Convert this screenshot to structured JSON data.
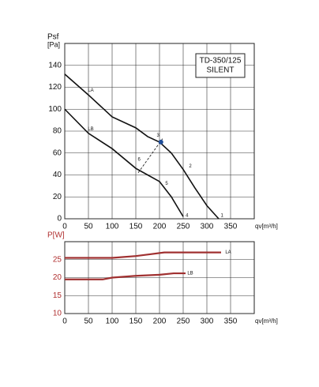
{
  "chart_data": [
    {
      "type": "line",
      "y_label": "Psf",
      "y_unit": "[Pa]",
      "x_label": "qv[m³/h]",
      "box_lines": [
        "TD-350/125",
        "SILENT"
      ],
      "xlim": [
        0,
        400
      ],
      "xticks": [
        0,
        50,
        100,
        150,
        200,
        250,
        300,
        350
      ],
      "ylim": [
        0,
        160
      ],
      "yticks": [
        0,
        20,
        40,
        60,
        80,
        100,
        120,
        140
      ],
      "grid": true,
      "tick_color": "#111",
      "series": [
        {
          "color": "#111",
          "style": "solid",
          "x": [
            0,
            50,
            100,
            150,
            175,
            200,
            225,
            250,
            275,
            300,
            325
          ],
          "values": [
            132,
            113,
            93,
            83,
            75,
            70,
            60,
            45,
            28,
            12,
            0
          ]
        },
        {
          "color": "#111",
          "style": "solid",
          "x": [
            0,
            50,
            100,
            150,
            175,
            200,
            225,
            250
          ],
          "values": [
            100,
            78,
            64,
            46,
            40,
            34,
            20,
            2
          ]
        },
        {
          "color": "#111",
          "style": "dashed",
          "x": [
            155,
            208
          ],
          "values": [
            42,
            74
          ]
        },
        {
          "type": "scatter",
          "color": "#1f4e9a",
          "x": [
            203
          ],
          "values": [
            70
          ]
        }
      ],
      "annotations": [
        {
          "text": "LA",
          "x": 55,
          "y": 117
        },
        {
          "text": "LB",
          "x": 55,
          "y": 82
        },
        {
          "text": "1",
          "x": 332,
          "y": 3
        },
        {
          "text": "2",
          "x": 265,
          "y": 48
        },
        {
          "text": "3",
          "x": 197,
          "y": 76
        },
        {
          "text": "4",
          "x": 258,
          "y": 3
        },
        {
          "text": "5",
          "x": 215,
          "y": 32
        },
        {
          "text": "6",
          "x": 157,
          "y": 54
        }
      ]
    },
    {
      "type": "line",
      "y_label": "P[W]",
      "x_label": "qv[m³/h]",
      "xlim": [
        0,
        400
      ],
      "xticks": [
        0,
        50,
        100,
        150,
        200,
        250,
        300,
        350
      ],
      "ylim": [
        10,
        30
      ],
      "yticks": [
        10,
        15,
        20,
        25
      ],
      "grid": true,
      "tick_color": "#b03030",
      "series": [
        {
          "color": "#a03030",
          "style": "solid",
          "x": [
            0,
            100,
            150,
            180,
            210,
            250,
            330
          ],
          "values": [
            25.5,
            25.5,
            26,
            26.5,
            27,
            27,
            27
          ]
        },
        {
          "color": "#a03030",
          "style": "solid",
          "x": [
            0,
            80,
            100,
            150,
            200,
            230,
            255
          ],
          "values": [
            19.5,
            19.5,
            20,
            20.5,
            20.8,
            21.2,
            21.2
          ]
        }
      ],
      "annotations": [
        {
          "text": "LA",
          "x": 345,
          "y": 27
        },
        {
          "text": "LB",
          "x": 265,
          "y": 21.2
        }
      ]
    }
  ]
}
